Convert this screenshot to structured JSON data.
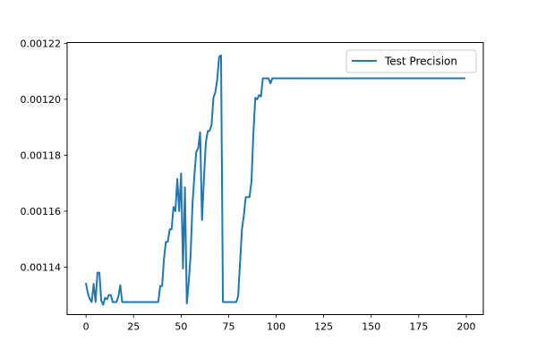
{
  "chart_data": {
    "type": "line",
    "title": "",
    "xlabel": "",
    "ylabel": "",
    "xlim": [
      -9.95,
      208.95
    ],
    "ylim": [
      0.001123,
      0.0012203
    ],
    "xticks": [
      0,
      25,
      50,
      75,
      100,
      125,
      150,
      175,
      200
    ],
    "xtick_labels": [
      "0",
      "25",
      "50",
      "75",
      "100",
      "125",
      "150",
      "175",
      "200"
    ],
    "yticks": [
      0.00114,
      0.00116,
      0.00118,
      0.0012,
      0.00122
    ],
    "ytick_labels": [
      "0.00114",
      "0.00116",
      "0.00118",
      "0.00120",
      "0.00122"
    ],
    "grid": false,
    "legend_position": "top-right",
    "series": [
      {
        "name": "Test Precision",
        "color": "#1f77b4",
        "x": [
          0,
          1,
          2,
          3,
          4,
          5,
          6,
          7,
          8,
          9,
          10,
          11,
          12,
          13,
          14,
          15,
          16,
          17,
          18,
          19,
          20,
          25,
          30,
          35,
          38,
          39,
          40,
          41,
          42,
          43,
          44,
          45,
          46,
          47,
          48,
          49,
          50,
          51,
          52,
          53,
          54,
          55,
          56,
          57,
          58,
          59,
          60,
          61,
          62,
          63,
          64,
          65,
          66,
          67,
          68,
          69,
          70,
          71,
          72,
          73,
          74,
          75,
          76,
          77,
          78,
          79,
          80,
          81,
          82,
          83,
          84,
          85,
          86,
          87,
          88,
          89,
          90,
          91,
          92,
          93,
          94,
          95,
          96,
          97,
          98,
          99,
          100,
          125,
          150,
          175,
          199
        ],
        "values": [
          0.001134,
          0.0011305,
          0.0011285,
          0.0011275,
          0.001134,
          0.0011275,
          0.001138,
          0.001138,
          0.001128,
          0.0011265,
          0.001129,
          0.0011285,
          0.00113,
          0.00113,
          0.0011275,
          0.0011275,
          0.0011275,
          0.0011295,
          0.0011335,
          0.0011275,
          0.0011275,
          0.0011275,
          0.0011275,
          0.0011275,
          0.0011275,
          0.0011332,
          0.0011332,
          0.001143,
          0.001149,
          0.001149,
          0.0011535,
          0.0011535,
          0.0011615,
          0.00116,
          0.0011715,
          0.00116,
          0.0011735,
          0.0011395,
          0.0011685,
          0.001127,
          0.0011345,
          0.0011445,
          0.0011625,
          0.001173,
          0.0011812,
          0.0011825,
          0.0011882,
          0.0011568,
          0.0011715,
          0.0011845,
          0.0011885,
          0.0011888,
          0.0011908,
          0.0012005,
          0.0012025,
          0.001207,
          0.0012152,
          0.0012157,
          0.0011275,
          0.0011275,
          0.0011275,
          0.0011275,
          0.0011275,
          0.0011275,
          0.0011275,
          0.0011275,
          0.0011295,
          0.0011415,
          0.0011535,
          0.0011585,
          0.001165,
          0.001165,
          0.001165,
          0.0011705,
          0.0011875,
          0.0012005,
          0.0012,
          0.0012015,
          0.001201,
          0.0012075,
          0.0012075,
          0.0012075,
          0.0012075,
          0.0012057,
          0.0012075,
          0.0012075,
          0.0012075,
          0.0012075,
          0.0012075,
          0.0012075,
          0.0012075
        ]
      }
    ]
  }
}
